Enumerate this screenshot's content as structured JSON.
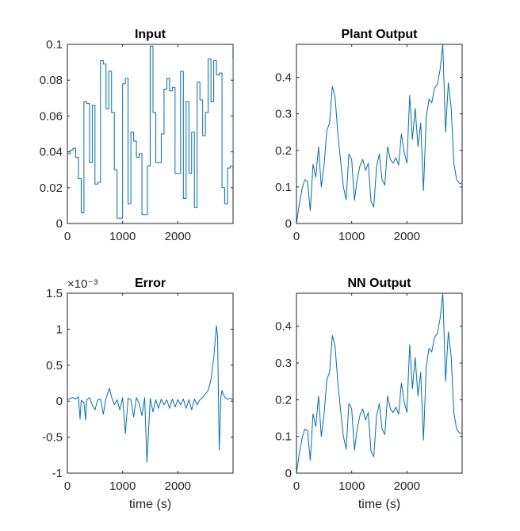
{
  "figure": {
    "background": "#ffffff",
    "line_color": "#0072BD",
    "axis_color": "#262626"
  },
  "chart_data": [
    {
      "type": "line",
      "step": true,
      "title": "Input",
      "xlabel": "",
      "ylabel": "",
      "xlim": [
        0,
        3000
      ],
      "ylim": [
        0,
        0.1
      ],
      "xticks": [
        0,
        1000,
        2000
      ],
      "xtick_labels": [
        "0",
        "1000",
        "2000"
      ],
      "yticks": [
        0,
        0.02,
        0.04,
        0.06,
        0.08,
        0.1
      ],
      "ytick_labels": [
        "0",
        "0.02",
        "0.04",
        "0.06",
        "0.08",
        "0.1"
      ],
      "exponent_label": "",
      "x": [
        0,
        50,
        100,
        150,
        200,
        250,
        300,
        350,
        400,
        450,
        500,
        550,
        600,
        650,
        700,
        750,
        800,
        850,
        900,
        950,
        1000,
        1050,
        1100,
        1150,
        1200,
        1250,
        1300,
        1350,
        1400,
        1450,
        1500,
        1550,
        1600,
        1650,
        1700,
        1750,
        1800,
        1850,
        1900,
        1950,
        2000,
        2050,
        2100,
        2150,
        2200,
        2250,
        2300,
        2350,
        2400,
        2450,
        2500,
        2550,
        2600,
        2650,
        2700,
        2750,
        2800,
        2850,
        2900,
        2950,
        3000
      ],
      "y": [
        0.039,
        0.041,
        0.042,
        0.037,
        0.025,
        0.006,
        0.068,
        0.067,
        0.034,
        0.066,
        0.022,
        0.023,
        0.091,
        0.089,
        0.064,
        0.085,
        0.062,
        0.03,
        0.003,
        0.003,
        0.078,
        0.081,
        0.011,
        0.051,
        0.046,
        0.037,
        0.039,
        0.005,
        0.005,
        0.032,
        0.099,
        0.062,
        0.034,
        0.034,
        0.05,
        0.075,
        0.081,
        0.074,
        0.076,
        0.028,
        0.028,
        0.085,
        0.014,
        0.068,
        0.028,
        0.051,
        0.009,
        0.079,
        0.069,
        0.049,
        0.062,
        0.092,
        0.068,
        0.091,
        0.083,
        0.084,
        0.02,
        0.011,
        0.031,
        0.032,
        0.092
      ]
    },
    {
      "type": "line",
      "step": false,
      "title": "Plant Output",
      "xlabel": "",
      "ylabel": "",
      "xlim": [
        0,
        3000
      ],
      "ylim": [
        0,
        0.49
      ],
      "xticks": [
        0,
        1000,
        2000
      ],
      "xtick_labels": [
        "0",
        "1000",
        "2000"
      ],
      "yticks": [
        0,
        0.1,
        0.2,
        0.3,
        0.4
      ],
      "ytick_labels": [
        "0",
        "0.1",
        "0.2",
        "0.3",
        "0.4"
      ],
      "exponent_label": "",
      "x": [
        0,
        50,
        100,
        150,
        200,
        250,
        300,
        350,
        400,
        450,
        500,
        550,
        600,
        650,
        700,
        750,
        800,
        850,
        900,
        950,
        1000,
        1050,
        1100,
        1150,
        1200,
        1250,
        1300,
        1350,
        1400,
        1450,
        1500,
        1550,
        1600,
        1650,
        1700,
        1750,
        1800,
        1850,
        1900,
        1950,
        2000,
        2050,
        2100,
        2150,
        2200,
        2250,
        2300,
        2350,
        2400,
        2450,
        2500,
        2550,
        2600,
        2650,
        2700,
        2750,
        2800,
        2850,
        2900,
        2950,
        3000
      ],
      "y": [
        0.0,
        0.052,
        0.094,
        0.12,
        0.115,
        0.035,
        0.162,
        0.127,
        0.21,
        0.1,
        0.16,
        0.255,
        0.275,
        0.375,
        0.345,
        0.245,
        0.17,
        0.1,
        0.065,
        0.19,
        0.175,
        0.063,
        0.12,
        0.158,
        0.175,
        0.145,
        0.165,
        0.06,
        0.045,
        0.155,
        0.19,
        0.12,
        0.105,
        0.21,
        0.175,
        0.165,
        0.18,
        0.16,
        0.245,
        0.195,
        0.165,
        0.35,
        0.23,
        0.315,
        0.21,
        0.275,
        0.09,
        0.29,
        0.34,
        0.33,
        0.37,
        0.38,
        0.42,
        0.49,
        0.25,
        0.385,
        0.32,
        0.165,
        0.12,
        0.11,
        0.108
      ]
    },
    {
      "type": "line",
      "step": false,
      "title": "Error",
      "xlabel": "time (s)",
      "ylabel": "",
      "xlim": [
        0,
        3000
      ],
      "ylim": [
        -1,
        1.5
      ],
      "xticks": [
        0,
        1000,
        2000
      ],
      "xtick_labels": [
        "0",
        "1000",
        "2000"
      ],
      "yticks": [
        -1,
        -0.5,
        0,
        0.5,
        1,
        1.5
      ],
      "ytick_labels": [
        "-1",
        "-0.5",
        "0",
        "0.5",
        "1",
        "1.5"
      ],
      "exponent_label": "×10⁻³",
      "x": [
        0,
        50,
        100,
        150,
        200,
        230,
        250,
        300,
        330,
        350,
        400,
        450,
        500,
        550,
        600,
        650,
        700,
        760,
        800,
        850,
        900,
        950,
        1000,
        1050,
        1100,
        1150,
        1200,
        1250,
        1300,
        1350,
        1400,
        1440,
        1500,
        1550,
        1600,
        1650,
        1700,
        1750,
        1800,
        1850,
        1900,
        1950,
        2000,
        2050,
        2100,
        2150,
        2200,
        2250,
        2300,
        2350,
        2400,
        2450,
        2500,
        2550,
        2600,
        2650,
        2700,
        2720,
        2750,
        2780,
        2800,
        2850,
        2900,
        2950,
        3000
      ],
      "y": [
        0.02,
        0.04,
        0.05,
        0.03,
        0.06,
        -0.25,
        0.01,
        -0.02,
        -0.26,
        0.02,
        0.05,
        -0.05,
        -0.12,
        0.02,
        0.03,
        -0.18,
        0.04,
        0.18,
        0.06,
        -0.05,
        0.02,
        -0.12,
        0.05,
        -0.45,
        0.04,
        0.02,
        -0.22,
        0.05,
        -0.03,
        -0.2,
        0.05,
        -0.85,
        0.04,
        -0.15,
        0.02,
        -0.1,
        0.03,
        -0.05,
        0.02,
        -0.1,
        0.03,
        -0.08,
        0.02,
        -0.05,
        0.03,
        -0.1,
        0.02,
        -0.12,
        0.03,
        -0.05,
        0.02,
        0.05,
        0.1,
        0.15,
        0.3,
        0.6,
        1.05,
        0.9,
        -0.68,
        0.05,
        0.15,
        0.05,
        0.03,
        0.04,
        0.02
      ]
    },
    {
      "type": "line",
      "step": false,
      "title": "NN Output",
      "xlabel": "time (s)",
      "ylabel": "",
      "xlim": [
        0,
        3000
      ],
      "ylim": [
        0,
        0.49
      ],
      "xticks": [
        0,
        1000,
        2000
      ],
      "xtick_labels": [
        "0",
        "1000",
        "2000"
      ],
      "yticks": [
        0,
        0.1,
        0.2,
        0.3,
        0.4
      ],
      "ytick_labels": [
        "0",
        "0.1",
        "0.2",
        "0.3",
        "0.4"
      ],
      "exponent_label": "",
      "x": [
        0,
        50,
        100,
        150,
        200,
        250,
        300,
        350,
        400,
        450,
        500,
        550,
        600,
        650,
        700,
        750,
        800,
        850,
        900,
        950,
        1000,
        1050,
        1100,
        1150,
        1200,
        1250,
        1300,
        1350,
        1400,
        1450,
        1500,
        1550,
        1600,
        1650,
        1700,
        1750,
        1800,
        1850,
        1900,
        1950,
        2000,
        2050,
        2100,
        2150,
        2200,
        2250,
        2300,
        2350,
        2400,
        2450,
        2500,
        2550,
        2600,
        2650,
        2700,
        2750,
        2800,
        2850,
        2900,
        2950,
        3000
      ],
      "y": [
        0.0,
        0.052,
        0.094,
        0.12,
        0.115,
        0.035,
        0.162,
        0.127,
        0.21,
        0.1,
        0.16,
        0.255,
        0.275,
        0.375,
        0.345,
        0.245,
        0.17,
        0.1,
        0.065,
        0.19,
        0.175,
        0.063,
        0.12,
        0.158,
        0.175,
        0.145,
        0.165,
        0.06,
        0.045,
        0.155,
        0.19,
        0.12,
        0.105,
        0.21,
        0.175,
        0.165,
        0.18,
        0.16,
        0.245,
        0.195,
        0.165,
        0.35,
        0.23,
        0.315,
        0.21,
        0.275,
        0.09,
        0.29,
        0.34,
        0.33,
        0.37,
        0.38,
        0.42,
        0.49,
        0.25,
        0.385,
        0.32,
        0.165,
        0.12,
        0.11,
        0.108
      ]
    }
  ]
}
